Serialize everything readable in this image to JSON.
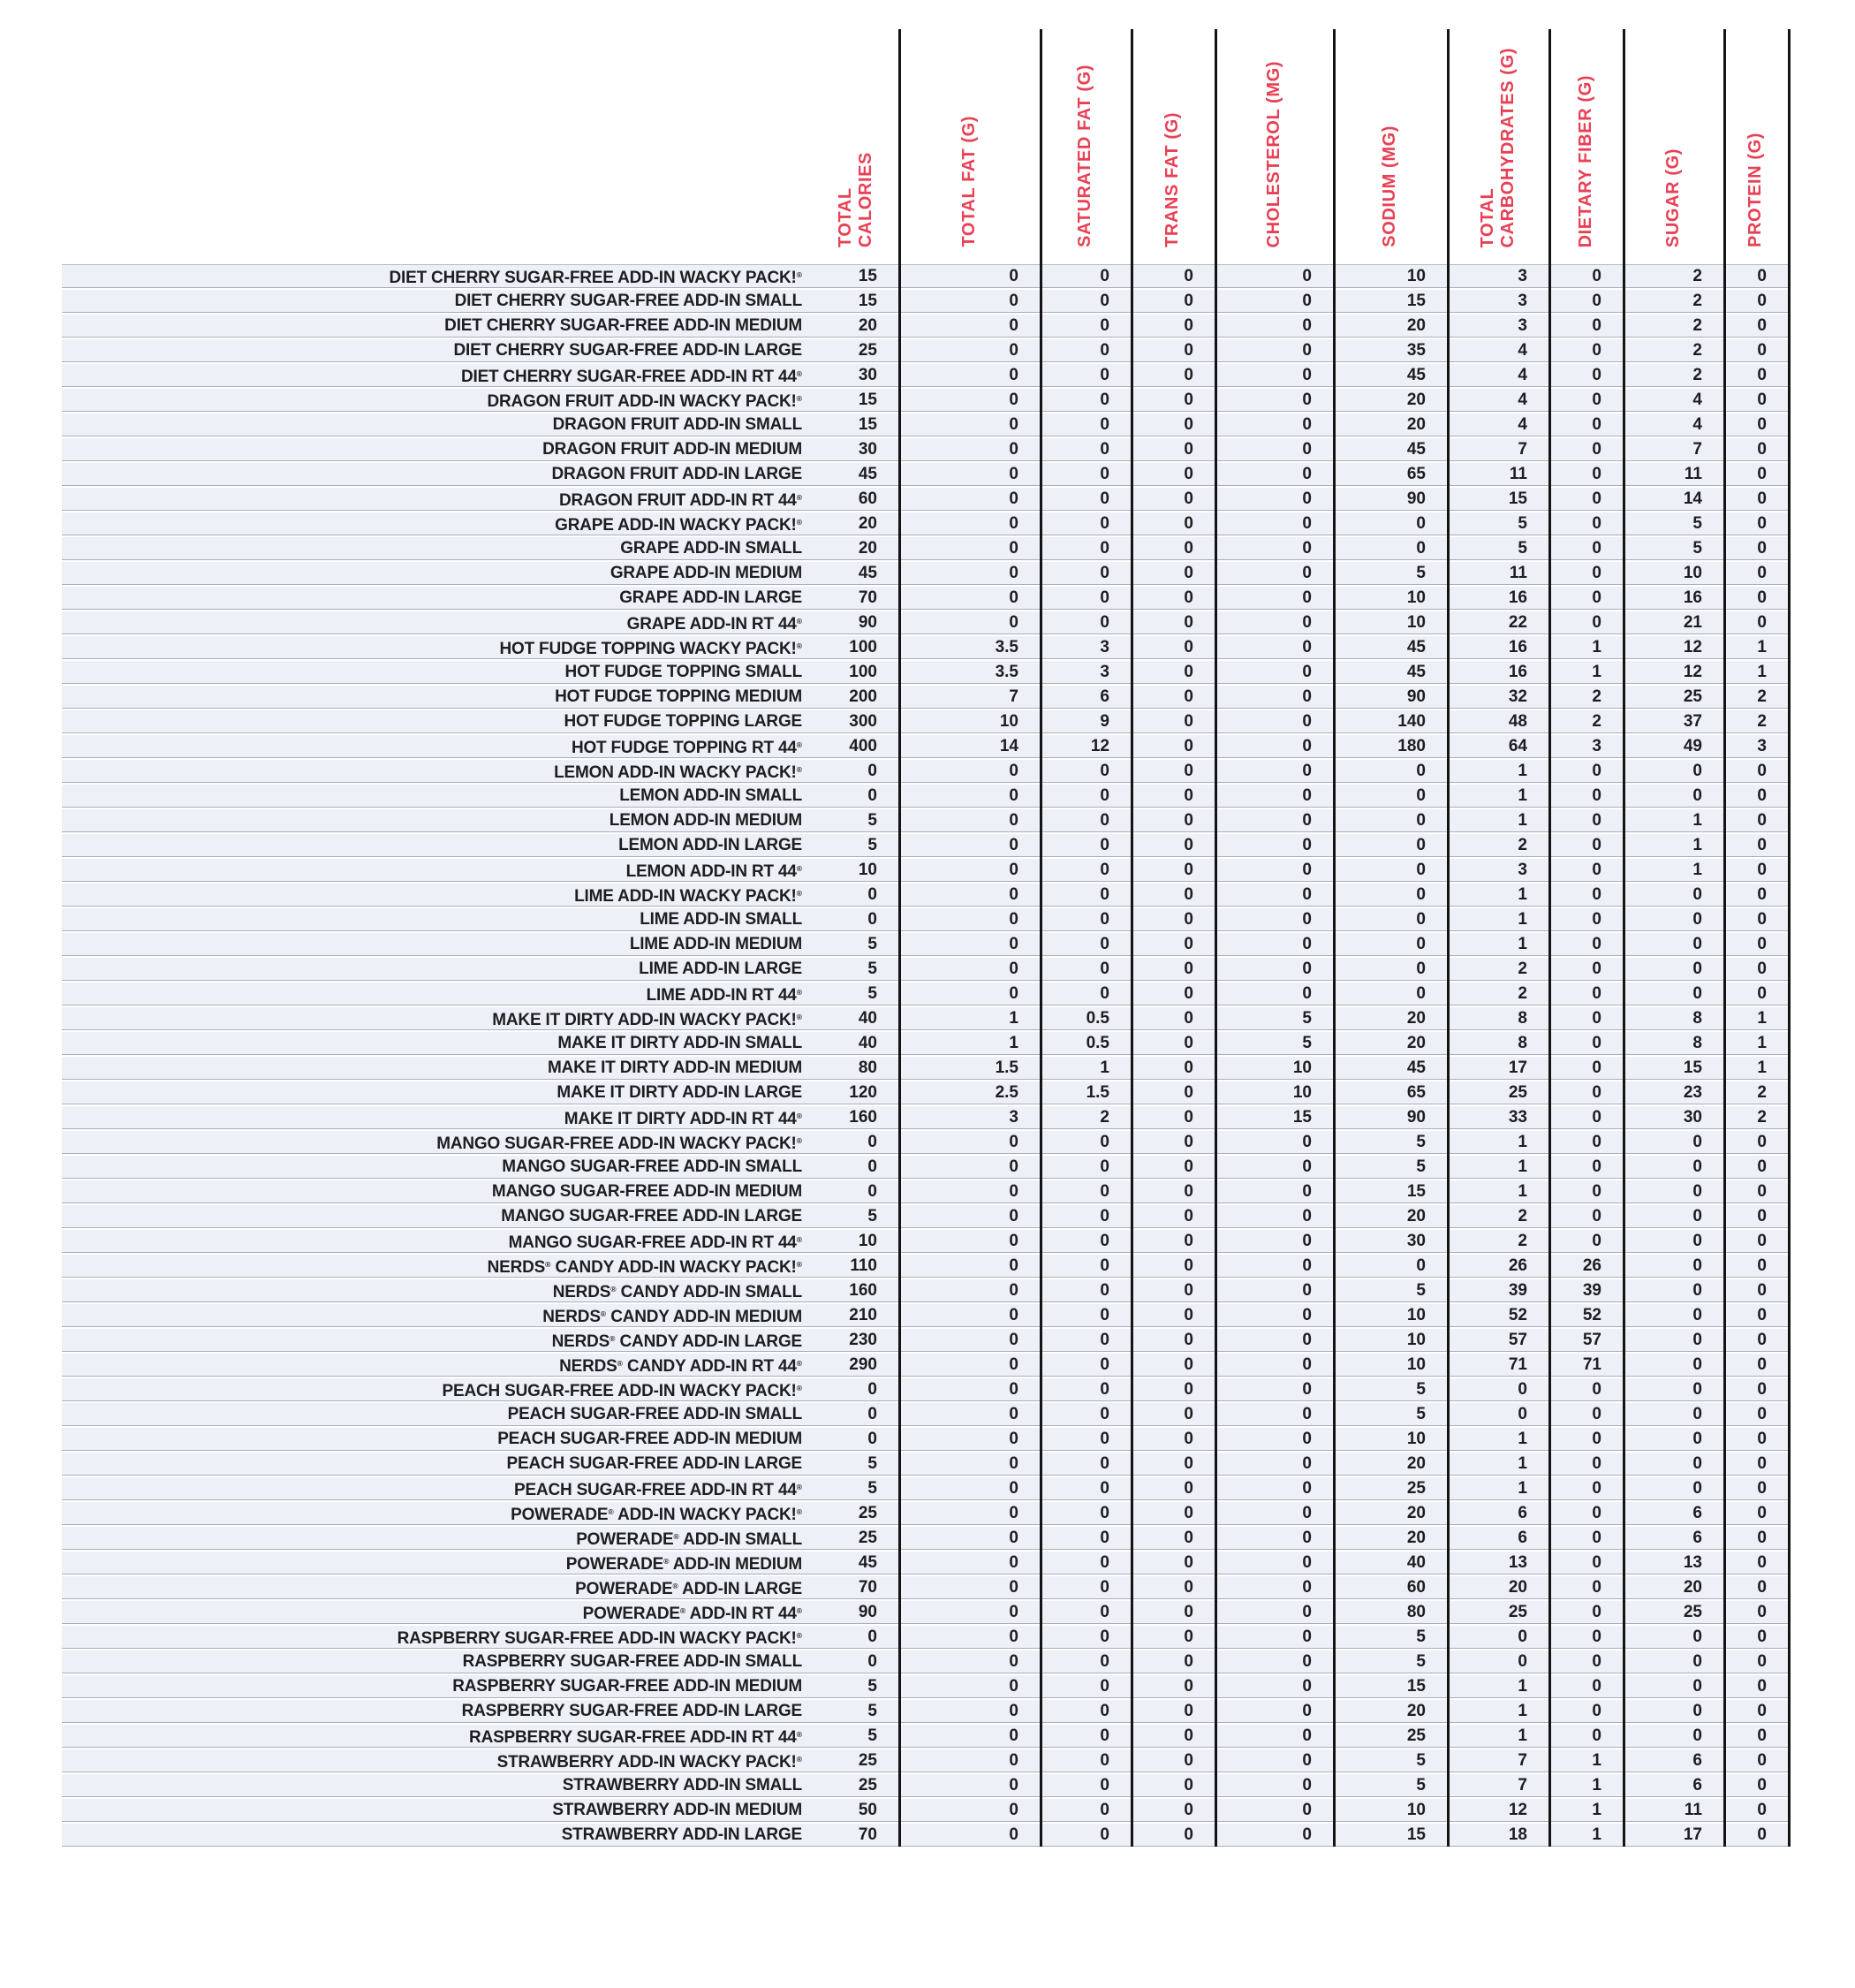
{
  "table": {
    "columns": [
      "TOTAL\nCALORIES",
      "TOTAL FAT (G)",
      "SATURATED FAT (G)",
      "TRANS FAT (G)",
      "CHOLESTEROL (MG)",
      "SODIUM (MG)",
      "TOTAL\nCARBOHYDRATES (G)",
      "DIETARY FIBER (G)",
      "SUGAR (G)",
      "PROTEIN (G)"
    ],
    "rows": [
      {
        "item": "DIET CHERRY SUGAR-FREE ADD-IN WACKY PACK!®",
        "values": [
          "15",
          "0",
          "0",
          "0",
          "0",
          "10",
          "3",
          "0",
          "2",
          "0"
        ]
      },
      {
        "item": "DIET CHERRY SUGAR-FREE ADD-IN SMALL",
        "values": [
          "15",
          "0",
          "0",
          "0",
          "0",
          "15",
          "3",
          "0",
          "2",
          "0"
        ]
      },
      {
        "item": "DIET CHERRY SUGAR-FREE ADD-IN MEDIUM",
        "values": [
          "20",
          "0",
          "0",
          "0",
          "0",
          "20",
          "3",
          "0",
          "2",
          "0"
        ]
      },
      {
        "item": "DIET CHERRY SUGAR-FREE ADD-IN LARGE",
        "values": [
          "25",
          "0",
          "0",
          "0",
          "0",
          "35",
          "4",
          "0",
          "2",
          "0"
        ]
      },
      {
        "item": "DIET CHERRY SUGAR-FREE ADD-IN RT 44®",
        "values": [
          "30",
          "0",
          "0",
          "0",
          "0",
          "45",
          "4",
          "0",
          "2",
          "0"
        ]
      },
      {
        "item": "DRAGON FRUIT ADD-IN WACKY PACK!®",
        "values": [
          "15",
          "0",
          "0",
          "0",
          "0",
          "20",
          "4",
          "0",
          "4",
          "0"
        ]
      },
      {
        "item": "DRAGON FRUIT ADD-IN SMALL",
        "values": [
          "15",
          "0",
          "0",
          "0",
          "0",
          "20",
          "4",
          "0",
          "4",
          "0"
        ]
      },
      {
        "item": "DRAGON FRUIT ADD-IN MEDIUM",
        "values": [
          "30",
          "0",
          "0",
          "0",
          "0",
          "45",
          "7",
          "0",
          "7",
          "0"
        ]
      },
      {
        "item": "DRAGON FRUIT ADD-IN LARGE",
        "values": [
          "45",
          "0",
          "0",
          "0",
          "0",
          "65",
          "11",
          "0",
          "11",
          "0"
        ]
      },
      {
        "item": "DRAGON FRUIT ADD-IN RT 44®",
        "values": [
          "60",
          "0",
          "0",
          "0",
          "0",
          "90",
          "15",
          "0",
          "14",
          "0"
        ]
      },
      {
        "item": "GRAPE ADD-IN WACKY PACK!®",
        "values": [
          "20",
          "0",
          "0",
          "0",
          "0",
          "0",
          "5",
          "0",
          "5",
          "0"
        ]
      },
      {
        "item": "GRAPE ADD-IN SMALL",
        "values": [
          "20",
          "0",
          "0",
          "0",
          "0",
          "0",
          "5",
          "0",
          "5",
          "0"
        ]
      },
      {
        "item": "GRAPE ADD-IN MEDIUM",
        "values": [
          "45",
          "0",
          "0",
          "0",
          "0",
          "5",
          "11",
          "0",
          "10",
          "0"
        ]
      },
      {
        "item": "GRAPE ADD-IN LARGE",
        "values": [
          "70",
          "0",
          "0",
          "0",
          "0",
          "10",
          "16",
          "0",
          "16",
          "0"
        ]
      },
      {
        "item": "GRAPE ADD-IN RT 44®",
        "values": [
          "90",
          "0",
          "0",
          "0",
          "0",
          "10",
          "22",
          "0",
          "21",
          "0"
        ]
      },
      {
        "item": "HOT FUDGE TOPPING WACKY PACK!®",
        "values": [
          "100",
          "3.5",
          "3",
          "0",
          "0",
          "45",
          "16",
          "1",
          "12",
          "1"
        ]
      },
      {
        "item": "HOT FUDGE TOPPING SMALL",
        "values": [
          "100",
          "3.5",
          "3",
          "0",
          "0",
          "45",
          "16",
          "1",
          "12",
          "1"
        ]
      },
      {
        "item": "HOT FUDGE TOPPING MEDIUM",
        "values": [
          "200",
          "7",
          "6",
          "0",
          "0",
          "90",
          "32",
          "2",
          "25",
          "2"
        ]
      },
      {
        "item": "HOT FUDGE TOPPING LARGE",
        "values": [
          "300",
          "10",
          "9",
          "0",
          "0",
          "140",
          "48",
          "2",
          "37",
          "2"
        ]
      },
      {
        "item": "HOT FUDGE TOPPING RT 44®",
        "values": [
          "400",
          "14",
          "12",
          "0",
          "0",
          "180",
          "64",
          "3",
          "49",
          "3"
        ]
      },
      {
        "item": "LEMON ADD-IN WACKY PACK!®",
        "values": [
          "0",
          "0",
          "0",
          "0",
          "0",
          "0",
          "1",
          "0",
          "0",
          "0"
        ]
      },
      {
        "item": "LEMON ADD-IN SMALL",
        "values": [
          "0",
          "0",
          "0",
          "0",
          "0",
          "0",
          "1",
          "0",
          "0",
          "0"
        ]
      },
      {
        "item": "LEMON ADD-IN MEDIUM",
        "values": [
          "5",
          "0",
          "0",
          "0",
          "0",
          "0",
          "1",
          "0",
          "1",
          "0"
        ]
      },
      {
        "item": "LEMON ADD-IN LARGE",
        "values": [
          "5",
          "0",
          "0",
          "0",
          "0",
          "0",
          "2",
          "0",
          "1",
          "0"
        ]
      },
      {
        "item": "LEMON ADD-IN RT 44®",
        "values": [
          "10",
          "0",
          "0",
          "0",
          "0",
          "0",
          "3",
          "0",
          "1",
          "0"
        ]
      },
      {
        "item": "LIME ADD-IN WACKY PACK!®",
        "values": [
          "0",
          "0",
          "0",
          "0",
          "0",
          "0",
          "1",
          "0",
          "0",
          "0"
        ]
      },
      {
        "item": "LIME ADD-IN SMALL",
        "values": [
          "0",
          "0",
          "0",
          "0",
          "0",
          "0",
          "1",
          "0",
          "0",
          "0"
        ]
      },
      {
        "item": "LIME ADD-IN MEDIUM",
        "values": [
          "5",
          "0",
          "0",
          "0",
          "0",
          "0",
          "1",
          "0",
          "0",
          "0"
        ]
      },
      {
        "item": "LIME ADD-IN LARGE",
        "values": [
          "5",
          "0",
          "0",
          "0",
          "0",
          "0",
          "2",
          "0",
          "0",
          "0"
        ]
      },
      {
        "item": "LIME ADD-IN RT 44®",
        "values": [
          "5",
          "0",
          "0",
          "0",
          "0",
          "0",
          "2",
          "0",
          "0",
          "0"
        ]
      },
      {
        "item": "MAKE IT DIRTY ADD-IN WACKY PACK!®",
        "values": [
          "40",
          "1",
          "0.5",
          "0",
          "5",
          "20",
          "8",
          "0",
          "8",
          "1"
        ]
      },
      {
        "item": "MAKE IT DIRTY ADD-IN SMALL",
        "values": [
          "40",
          "1",
          "0.5",
          "0",
          "5",
          "20",
          "8",
          "0",
          "8",
          "1"
        ]
      },
      {
        "item": "MAKE IT DIRTY ADD-IN MEDIUM",
        "values": [
          "80",
          "1.5",
          "1",
          "0",
          "10",
          "45",
          "17",
          "0",
          "15",
          "1"
        ]
      },
      {
        "item": "MAKE IT DIRTY ADD-IN LARGE",
        "values": [
          "120",
          "2.5",
          "1.5",
          "0",
          "10",
          "65",
          "25",
          "0",
          "23",
          "2"
        ]
      },
      {
        "item": "MAKE IT DIRTY ADD-IN RT 44®",
        "values": [
          "160",
          "3",
          "2",
          "0",
          "15",
          "90",
          "33",
          "0",
          "30",
          "2"
        ]
      },
      {
        "item": "MANGO SUGAR-FREE ADD-IN WACKY PACK!®",
        "values": [
          "0",
          "0",
          "0",
          "0",
          "0",
          "5",
          "1",
          "0",
          "0",
          "0"
        ]
      },
      {
        "item": "MANGO SUGAR-FREE ADD-IN SMALL",
        "values": [
          "0",
          "0",
          "0",
          "0",
          "0",
          "5",
          "1",
          "0",
          "0",
          "0"
        ]
      },
      {
        "item": "MANGO SUGAR-FREE ADD-IN MEDIUM",
        "values": [
          "0",
          "0",
          "0",
          "0",
          "0",
          "15",
          "1",
          "0",
          "0",
          "0"
        ]
      },
      {
        "item": "MANGO SUGAR-FREE ADD-IN LARGE",
        "values": [
          "5",
          "0",
          "0",
          "0",
          "0",
          "20",
          "2",
          "0",
          "0",
          "0"
        ]
      },
      {
        "item": "MANGO SUGAR-FREE ADD-IN RT 44®",
        "values": [
          "10",
          "0",
          "0",
          "0",
          "0",
          "30",
          "2",
          "0",
          "0",
          "0"
        ]
      },
      {
        "item": "NERDS® CANDY ADD-IN WACKY PACK!®",
        "values": [
          "110",
          "0",
          "0",
          "0",
          "0",
          "0",
          "26",
          "26",
          "0",
          "0"
        ]
      },
      {
        "item": "NERDS® CANDY ADD-IN SMALL",
        "values": [
          "160",
          "0",
          "0",
          "0",
          "0",
          "5",
          "39",
          "39",
          "0",
          "0"
        ]
      },
      {
        "item": "NERDS® CANDY ADD-IN MEDIUM",
        "values": [
          "210",
          "0",
          "0",
          "0",
          "0",
          "10",
          "52",
          "52",
          "0",
          "0"
        ]
      },
      {
        "item": "NERDS® CANDY ADD-IN LARGE",
        "values": [
          "230",
          "0",
          "0",
          "0",
          "0",
          "10",
          "57",
          "57",
          "0",
          "0"
        ]
      },
      {
        "item": "NERDS® CANDY ADD-IN RT 44®",
        "values": [
          "290",
          "0",
          "0",
          "0",
          "0",
          "10",
          "71",
          "71",
          "0",
          "0"
        ]
      },
      {
        "item": "PEACH SUGAR-FREE ADD-IN WACKY PACK!®",
        "values": [
          "0",
          "0",
          "0",
          "0",
          "0",
          "5",
          "0",
          "0",
          "0",
          "0"
        ]
      },
      {
        "item": "PEACH SUGAR-FREE ADD-IN SMALL",
        "values": [
          "0",
          "0",
          "0",
          "0",
          "0",
          "5",
          "0",
          "0",
          "0",
          "0"
        ]
      },
      {
        "item": "PEACH SUGAR-FREE ADD-IN MEDIUM",
        "values": [
          "0",
          "0",
          "0",
          "0",
          "0",
          "10",
          "1",
          "0",
          "0",
          "0"
        ]
      },
      {
        "item": "PEACH SUGAR-FREE ADD-IN LARGE",
        "values": [
          "5",
          "0",
          "0",
          "0",
          "0",
          "20",
          "1",
          "0",
          "0",
          "0"
        ]
      },
      {
        "item": "PEACH SUGAR-FREE ADD-IN RT 44®",
        "values": [
          "5",
          "0",
          "0",
          "0",
          "0",
          "25",
          "1",
          "0",
          "0",
          "0"
        ]
      },
      {
        "item": "POWERADE® ADD-IN WACKY PACK!®",
        "values": [
          "25",
          "0",
          "0",
          "0",
          "0",
          "20",
          "6",
          "0",
          "6",
          "0"
        ]
      },
      {
        "item": "POWERADE® ADD-IN SMALL",
        "values": [
          "25",
          "0",
          "0",
          "0",
          "0",
          "20",
          "6",
          "0",
          "6",
          "0"
        ]
      },
      {
        "item": "POWERADE® ADD-IN MEDIUM",
        "values": [
          "45",
          "0",
          "0",
          "0",
          "0",
          "40",
          "13",
          "0",
          "13",
          "0"
        ]
      },
      {
        "item": "POWERADE® ADD-IN LARGE",
        "values": [
          "70",
          "0",
          "0",
          "0",
          "0",
          "60",
          "20",
          "0",
          "20",
          "0"
        ]
      },
      {
        "item": "POWERADE® ADD-IN RT 44®",
        "values": [
          "90",
          "0",
          "0",
          "0",
          "0",
          "80",
          "25",
          "0",
          "25",
          "0"
        ]
      },
      {
        "item": "RASPBERRY SUGAR-FREE ADD-IN WACKY PACK!®",
        "values": [
          "0",
          "0",
          "0",
          "0",
          "0",
          "5",
          "0",
          "0",
          "0",
          "0"
        ]
      },
      {
        "item": "RASPBERRY SUGAR-FREE ADD-IN SMALL",
        "values": [
          "0",
          "0",
          "0",
          "0",
          "0",
          "5",
          "0",
          "0",
          "0",
          "0"
        ]
      },
      {
        "item": "RASPBERRY SUGAR-FREE ADD-IN MEDIUM",
        "values": [
          "5",
          "0",
          "0",
          "0",
          "0",
          "15",
          "1",
          "0",
          "0",
          "0"
        ]
      },
      {
        "item": "RASPBERRY SUGAR-FREE ADD-IN LARGE",
        "values": [
          "5",
          "0",
          "0",
          "0",
          "0",
          "20",
          "1",
          "0",
          "0",
          "0"
        ]
      },
      {
        "item": "RASPBERRY SUGAR-FREE ADD-IN RT 44®",
        "values": [
          "5",
          "0",
          "0",
          "0",
          "0",
          "25",
          "1",
          "0",
          "0",
          "0"
        ]
      },
      {
        "item": "STRAWBERRY ADD-IN WACKY PACK!®",
        "values": [
          "25",
          "0",
          "0",
          "0",
          "0",
          "5",
          "7",
          "1",
          "6",
          "0"
        ]
      },
      {
        "item": "STRAWBERRY ADD-IN SMALL",
        "values": [
          "25",
          "0",
          "0",
          "0",
          "0",
          "5",
          "7",
          "1",
          "6",
          "0"
        ]
      },
      {
        "item": "STRAWBERRY ADD-IN MEDIUM",
        "values": [
          "50",
          "0",
          "0",
          "0",
          "0",
          "10",
          "12",
          "1",
          "11",
          "0"
        ]
      },
      {
        "item": "STRAWBERRY ADD-IN LARGE",
        "values": [
          "70",
          "0",
          "0",
          "0",
          "0",
          "15",
          "18",
          "1",
          "17",
          "0"
        ]
      }
    ]
  },
  "colors": {
    "header_text": "#e84054",
    "row_background": "#edf0f6",
    "row_rule": "#a9aeb8",
    "column_divider": "#141414",
    "body_text": "#1e1e21"
  }
}
